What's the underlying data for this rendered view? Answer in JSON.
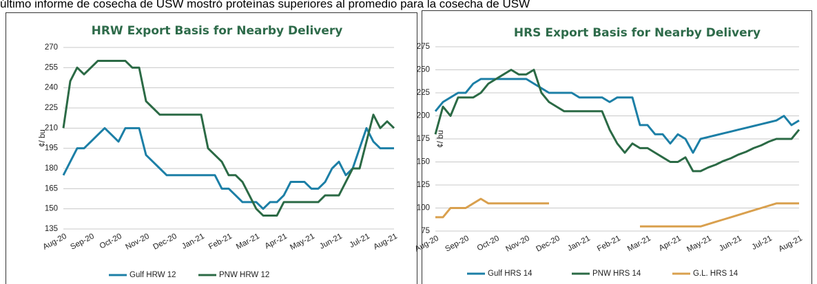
{
  "page_text": "último informe de cosecha de USW mostró proteínas superiores al promedio para la cosecha de USW",
  "chart_data": [
    {
      "type": "line",
      "title": "HRW Export Basis for Nearby Delivery",
      "y_label": "¢/ bu",
      "categories": [
        "Aug-20",
        null,
        null,
        null,
        "Sep-20",
        null,
        null,
        null,
        "Oct-20",
        null,
        null,
        null,
        "Nov-20",
        null,
        null,
        null,
        "Dec-20",
        null,
        null,
        null,
        "Jan-21",
        null,
        null,
        null,
        "Feb-21",
        null,
        null,
        null,
        "Mar-21",
        null,
        null,
        null,
        "Apr-21",
        null,
        null,
        null,
        "May-21",
        null,
        null,
        null,
        "Jun-21",
        null,
        null,
        null,
        "Jul-21",
        null,
        null,
        null,
        "Aug-21"
      ],
      "series": [
        {
          "name": "Gulf HRW 12",
          "color": "#1c7fa6",
          "values": [
            175,
            185,
            195,
            195,
            200,
            205,
            210,
            205,
            200,
            210,
            210,
            210,
            190,
            185,
            180,
            175,
            175,
            175,
            175,
            175,
            175,
            175,
            175,
            165,
            165,
            160,
            155,
            155,
            155,
            150,
            155,
            155,
            160,
            170,
            170,
            170,
            165,
            165,
            170,
            180,
            185,
            175,
            180,
            195,
            210,
            200,
            195,
            195,
            195
          ]
        },
        {
          "name": "PNW HRW 12",
          "color": "#2b6a45",
          "values": [
            210,
            245,
            255,
            250,
            255,
            260,
            260,
            260,
            260,
            260,
            255,
            255,
            230,
            225,
            220,
            220,
            220,
            220,
            220,
            220,
            220,
            195,
            190,
            185,
            175,
            175,
            170,
            160,
            150,
            145,
            145,
            145,
            155,
            155,
            155,
            155,
            155,
            155,
            160,
            160,
            160,
            170,
            180,
            180,
            200,
            220,
            210,
            215,
            210
          ]
        }
      ],
      "ylim": [
        135,
        270
      ],
      "yticks": [
        135,
        150,
        165,
        180,
        195,
        210,
        225,
        240,
        255,
        270
      ],
      "grid": true,
      "legend": "bottom"
    },
    {
      "type": "line",
      "title": "HRS Export Basis for Nearby Delivery",
      "y_label": "¢/ bu",
      "categories": [
        "Aug-20",
        null,
        null,
        null,
        "Sep-20",
        null,
        null,
        null,
        "Oct-20",
        null,
        null,
        null,
        "Nov-20",
        null,
        null,
        null,
        "Dec-20",
        null,
        null,
        null,
        "Jan-21",
        null,
        null,
        null,
        "Feb-21",
        null,
        null,
        null,
        "Mar-21",
        null,
        null,
        null,
        "Apr-21",
        null,
        null,
        null,
        "May-21",
        null,
        null,
        null,
        "Jun-21",
        null,
        null,
        null,
        "Jul-21",
        null,
        null,
        null,
        "Aug-21"
      ],
      "series": [
        {
          "name": "Gulf HRS 14",
          "color": "#1c7fa6",
          "values": [
            205,
            215,
            220,
            225,
            225,
            235,
            240,
            240,
            240,
            240,
            240,
            240,
            240,
            235,
            230,
            225,
            225,
            225,
            225,
            220,
            220,
            220,
            220,
            215,
            220,
            220,
            220,
            190,
            190,
            180,
            180,
            170,
            180,
            175,
            160,
            175,
            177,
            179,
            181,
            183,
            185,
            187,
            189,
            191,
            193,
            195,
            200,
            190,
            195
          ]
        },
        {
          "name": "PNW HRS 14",
          "color": "#2b6a45",
          "values": [
            180,
            210,
            200,
            220,
            220,
            220,
            225,
            235,
            240,
            245,
            250,
            245,
            245,
            250,
            225,
            215,
            210,
            205,
            205,
            205,
            205,
            205,
            205,
            185,
            170,
            160,
            170,
            165,
            165,
            160,
            155,
            150,
            150,
            155,
            140,
            140,
            144,
            147,
            151,
            154,
            158,
            161,
            165,
            168,
            172,
            175,
            175,
            175,
            185
          ]
        },
        {
          "name": "G.L. HRS 14",
          "color": "#d9a04e",
          "values": [
            90,
            90,
            100,
            100,
            100,
            105,
            110,
            105,
            105,
            105,
            105,
            105,
            105,
            105,
            105,
            105,
            null,
            null,
            null,
            null,
            null,
            null,
            null,
            null,
            null,
            null,
            null,
            80,
            80,
            80,
            80,
            80,
            80,
            80,
            80,
            80,
            82.5,
            85,
            87.5,
            90,
            92.5,
            95,
            97.5,
            100,
            102.5,
            105,
            105,
            105,
            105
          ]
        }
      ],
      "ylim": [
        75,
        275
      ],
      "yticks": [
        75,
        100,
        125,
        150,
        175,
        200,
        225,
        250,
        275
      ],
      "grid": true,
      "legend": "bottom"
    }
  ]
}
